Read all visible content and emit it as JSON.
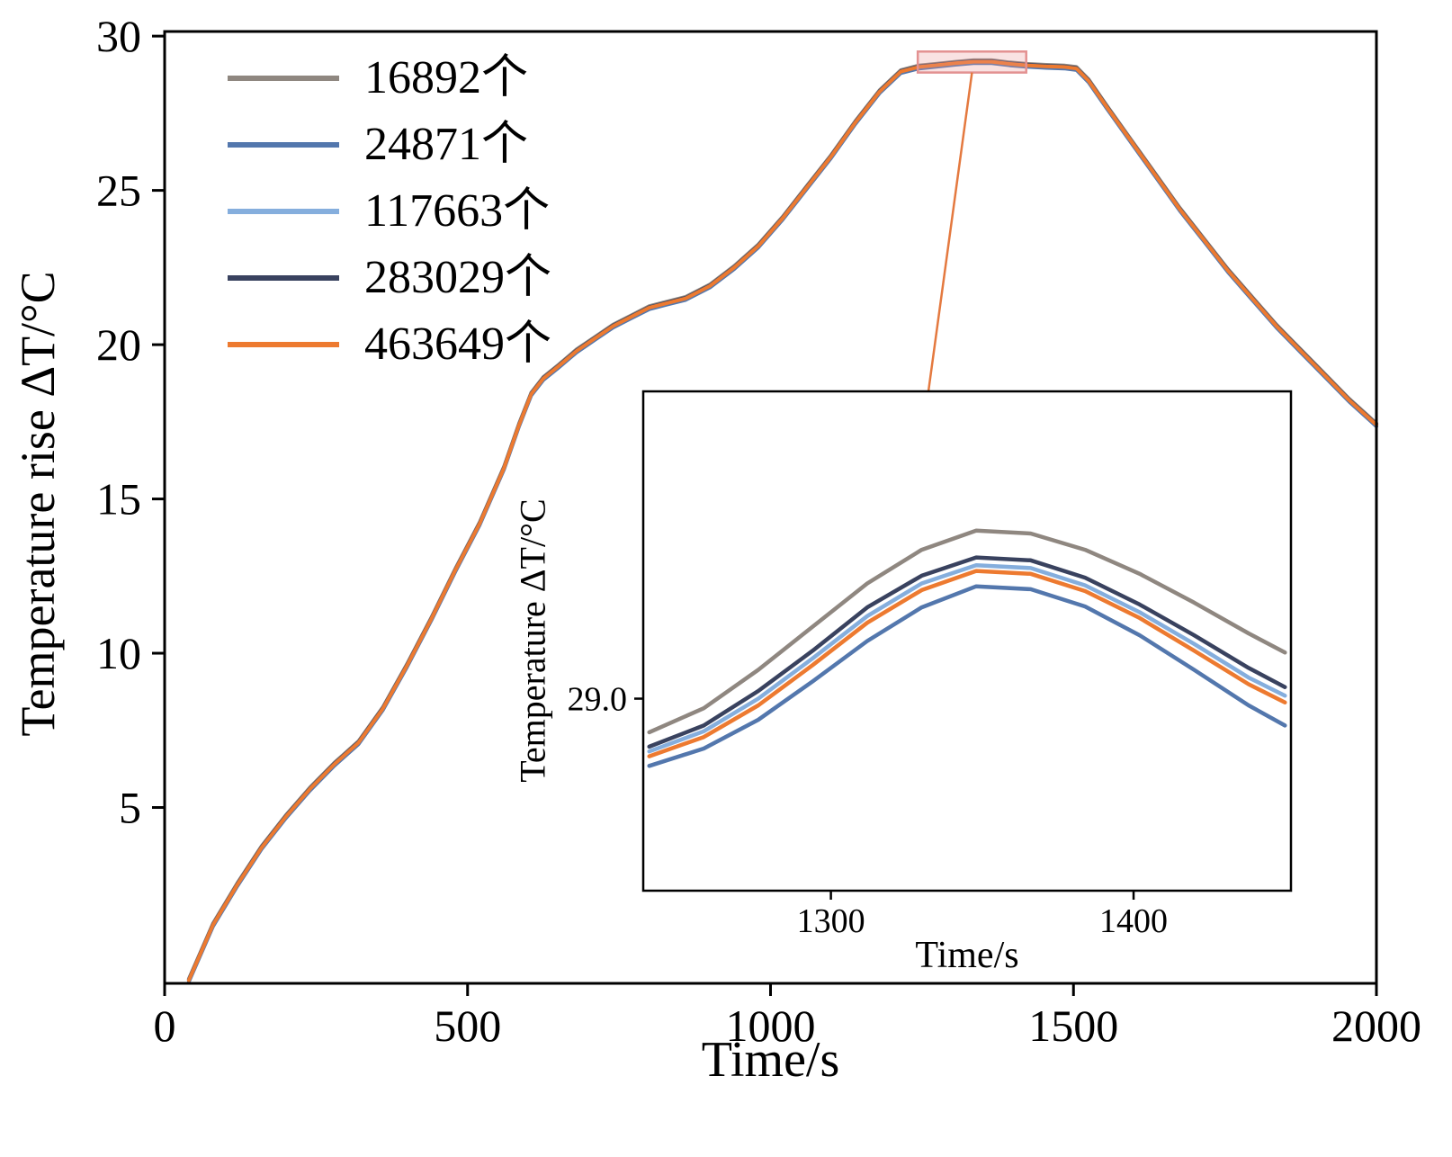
{
  "chart_data": {
    "type": "line",
    "title": "",
    "main": {
      "xlabel": "Time/s",
      "ylabel": "Temperature rise ΔT/°C",
      "xlim": [
        0,
        2000
      ],
      "ylim": [
        -0.7,
        30.15
      ],
      "xticks": [
        0,
        500,
        1000,
        1500,
        2000
      ],
      "yticks": [
        5,
        10,
        15,
        20,
        25,
        30
      ],
      "grid": false,
      "legend_position": "upper-left",
      "x": [
        40,
        80,
        120,
        160,
        200,
        240,
        280,
        320,
        360,
        400,
        440,
        480,
        520,
        560,
        585,
        605,
        625,
        650,
        680,
        710,
        740,
        770,
        800,
        830,
        860,
        900,
        940,
        980,
        1020,
        1060,
        1100,
        1140,
        1180,
        1215,
        1245,
        1275,
        1305,
        1335,
        1365,
        1395,
        1425,
        1455,
        1485,
        1505,
        1525,
        1555,
        1595,
        1635,
        1675,
        1715,
        1755,
        1795,
        1835,
        1875,
        1915,
        1955,
        2000
      ],
      "base_values": [
        -0.6,
        1.2,
        2.5,
        3.7,
        4.7,
        5.6,
        6.4,
        7.1,
        8.2,
        9.6,
        11.1,
        12.7,
        14.2,
        16.0,
        17.4,
        18.4,
        18.9,
        19.3,
        19.8,
        20.2,
        20.6,
        20.9,
        21.2,
        21.35,
        21.5,
        21.9,
        22.5,
        23.2,
        24.1,
        25.1,
        26.1,
        27.2,
        28.2,
        28.85,
        29.0,
        29.06,
        29.12,
        29.17,
        29.17,
        29.1,
        29.05,
        29.02,
        29.0,
        28.95,
        28.55,
        27.7,
        26.6,
        25.5,
        24.4,
        23.4,
        22.4,
        21.5,
        20.6,
        19.8,
        19.0,
        18.2,
        17.4
      ]
    },
    "series": [
      {
        "name": "16892个",
        "color": "#8f8780",
        "main_offset": 0.05
      },
      {
        "name": "24871个",
        "color": "#5377ad",
        "main_offset": -0.05
      },
      {
        "name": "117663个",
        "color": "#85aedd",
        "main_offset": 0.01
      },
      {
        "name": "283029个",
        "color": "#39425f",
        "main_offset": 0.02
      },
      {
        "name": "463649个",
        "color": "#ed7a30",
        "main_offset": 0.0
      }
    ],
    "inset": {
      "xlabel": "Time/s",
      "ylabel": "Temperature ΔT/°C",
      "xlim": [
        1238,
        1452
      ],
      "ylim": [
        28.8,
        29.32
      ],
      "xticks": [
        1300,
        1400
      ],
      "yticks": [
        29.0
      ],
      "x": [
        1240,
        1258,
        1276,
        1294,
        1312,
        1330,
        1348,
        1366,
        1384,
        1402,
        1420,
        1438,
        1450
      ],
      "series_values": [
        [
          28.965,
          28.99,
          29.03,
          29.075,
          29.12,
          29.155,
          29.175,
          29.172,
          29.155,
          29.13,
          29.1,
          29.068,
          29.048
        ],
        [
          28.93,
          28.948,
          28.978,
          29.018,
          29.06,
          29.095,
          29.117,
          29.114,
          29.096,
          29.066,
          29.03,
          28.993,
          28.972
        ],
        [
          28.945,
          28.966,
          29.0,
          29.042,
          29.086,
          29.12,
          29.139,
          29.136,
          29.118,
          29.09,
          29.057,
          29.022,
          29.003
        ],
        [
          28.95,
          28.972,
          29.008,
          29.05,
          29.095,
          29.128,
          29.147,
          29.144,
          29.126,
          29.098,
          29.066,
          29.032,
          29.012
        ],
        [
          28.94,
          28.96,
          28.993,
          29.035,
          29.079,
          29.113,
          29.133,
          29.13,
          29.112,
          29.084,
          29.05,
          29.015,
          28.996
        ]
      ]
    },
    "highlight_box": {
      "t0": 1243,
      "t1": 1422,
      "v0": 28.82,
      "v1": 29.5,
      "stroke": "#e39191",
      "fill": "rgba(233,150,150,0.28)"
    },
    "connector_color": "#e4793f"
  }
}
